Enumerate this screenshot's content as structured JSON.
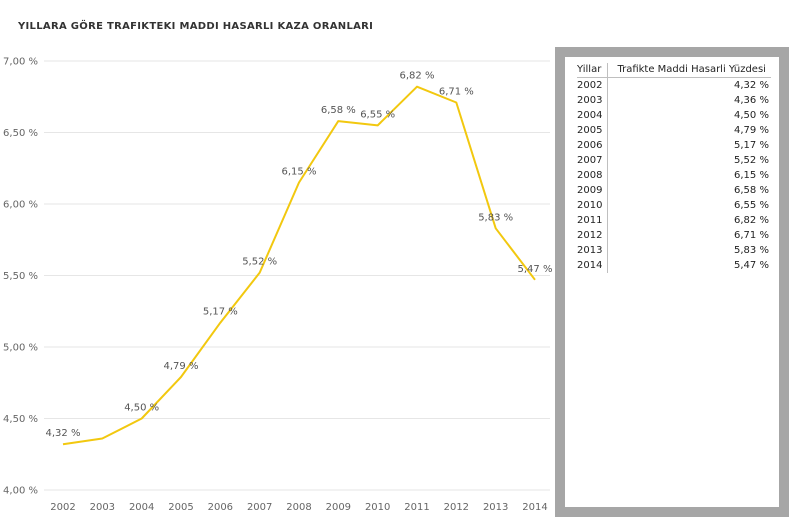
{
  "title": "YILLARA GÖRE TRAFIKTEKI MADDI HASARLI KAZA ORANLARI",
  "chart_data": {
    "type": "line",
    "title": "YILLARA GÖRE TRAFIKTEKI MADDI HASARLI KAZA ORANLARI",
    "xlabel": "",
    "ylabel": "",
    "categories": [
      "2002",
      "2003",
      "2004",
      "2005",
      "2006",
      "2007",
      "2008",
      "2009",
      "2010",
      "2011",
      "2012",
      "2013",
      "2014"
    ],
    "values": [
      4.32,
      4.36,
      4.5,
      4.79,
      5.17,
      5.52,
      6.15,
      6.58,
      6.55,
      6.82,
      6.71,
      5.83,
      5.47
    ],
    "data_labels": [
      "4,32 %",
      "",
      "4,50 %",
      "4,79 %",
      "5,17 %",
      "5,52 %",
      "6,15 %",
      "6,58 %",
      "6,55 %",
      "6,82 %",
      "6,71 %",
      "5,83 %",
      "5,47 %"
    ],
    "ylim": [
      4.0,
      7.0
    ],
    "y_ticks": [
      4.0,
      4.5,
      5.0,
      5.5,
      6.0,
      6.5,
      7.0
    ],
    "y_tick_labels": [
      "4,00 %",
      "4,50 %",
      "5,00 %",
      "5,50 %",
      "6,00 %",
      "6,50 %",
      "7,00 %"
    ],
    "grid": true,
    "line_color": "#f2c80f"
  },
  "table": {
    "headers": [
      "Yillar",
      "Trafikte Maddi Hasarli Yüzdesi"
    ],
    "rows": [
      [
        "2002",
        "4,32 %"
      ],
      [
        "2003",
        "4,36 %"
      ],
      [
        "2004",
        "4,50 %"
      ],
      [
        "2005",
        "4,79 %"
      ],
      [
        "2006",
        "5,17 %"
      ],
      [
        "2007",
        "5,52 %"
      ],
      [
        "2008",
        "6,15 %"
      ],
      [
        "2009",
        "6,58 %"
      ],
      [
        "2010",
        "6,55 %"
      ],
      [
        "2011",
        "6,82 %"
      ],
      [
        "2012",
        "6,71 %"
      ],
      [
        "2013",
        "5,83 %"
      ],
      [
        "2014",
        "5,47 %"
      ]
    ]
  }
}
